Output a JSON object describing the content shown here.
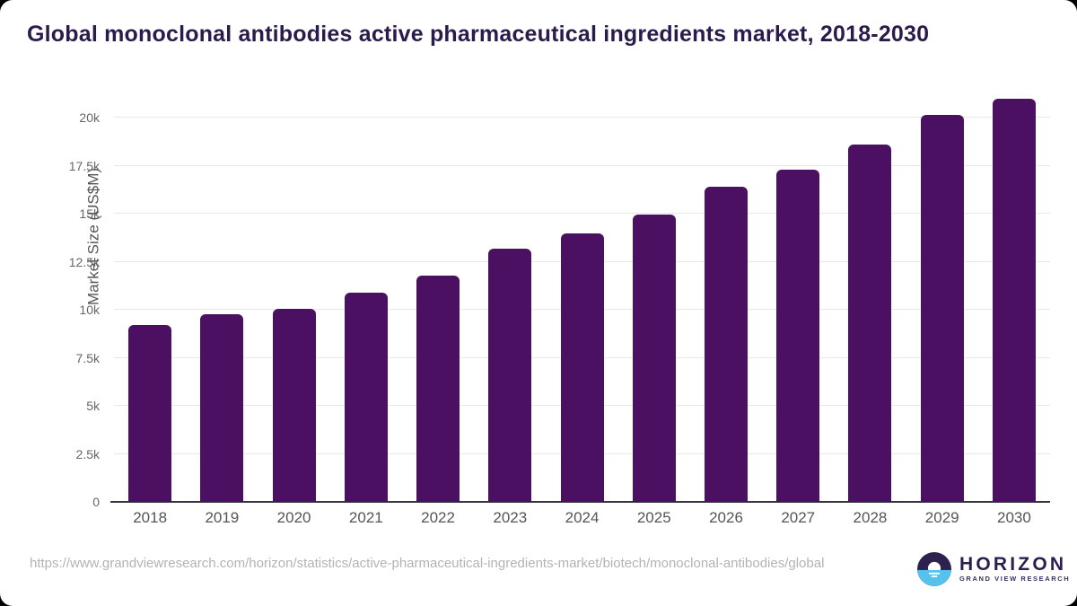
{
  "title": "Global monoclonal antibodies active pharmaceutical ingredients market, 2018-2030",
  "chart_data": {
    "type": "bar",
    "title": "Global monoclonal antibodies active pharmaceutical ingredients market, 2018-2030",
    "categories": [
      "2018",
      "2019",
      "2020",
      "2021",
      "2022",
      "2023",
      "2024",
      "2025",
      "2026",
      "2027",
      "2028",
      "2029",
      "2030"
    ],
    "values": [
      9230,
      9780,
      10070,
      10900,
      11770,
      13180,
      13980,
      14980,
      16400,
      17300,
      18600,
      20140,
      20980
    ],
    "xlabel": "",
    "ylabel": "Market Size (US$M)",
    "ylim": [
      0,
      21470
    ],
    "yticks": [
      {
        "value": 0,
        "label": "0"
      },
      {
        "value": 2500,
        "label": "2.5k"
      },
      {
        "value": 5000,
        "label": "5k"
      },
      {
        "value": 7500,
        "label": "7.5k"
      },
      {
        "value": 10000,
        "label": "10k"
      },
      {
        "value": 12500,
        "label": "12.5k"
      },
      {
        "value": 15000,
        "label": "15k"
      },
      {
        "value": 17500,
        "label": "17.5k"
      },
      {
        "value": 20000,
        "label": "20k"
      }
    ],
    "grid": true,
    "legend": false,
    "units": "US$M"
  },
  "footer": {
    "source_url": "https://www.grandviewresearch.com/horizon/statistics/active-pharmaceutical-ingredients-market/biotech/monoclonal-antibodies/global",
    "logo": {
      "name": "HORIZON",
      "subtitle": "GRAND VIEW RESEARCH"
    }
  },
  "colors": {
    "bar": "#4b1061",
    "title": "#2b1b4d",
    "axis_title": "#555555",
    "tick_label": "#666666",
    "x_label": "#555555",
    "gridline": "#e7e7e7",
    "axis_line": "#33333d",
    "source_url": "#b3b3b3",
    "logo_purple": "#2e2150",
    "logo_blue": "#56c2ec",
    "background": "#ffffff"
  }
}
